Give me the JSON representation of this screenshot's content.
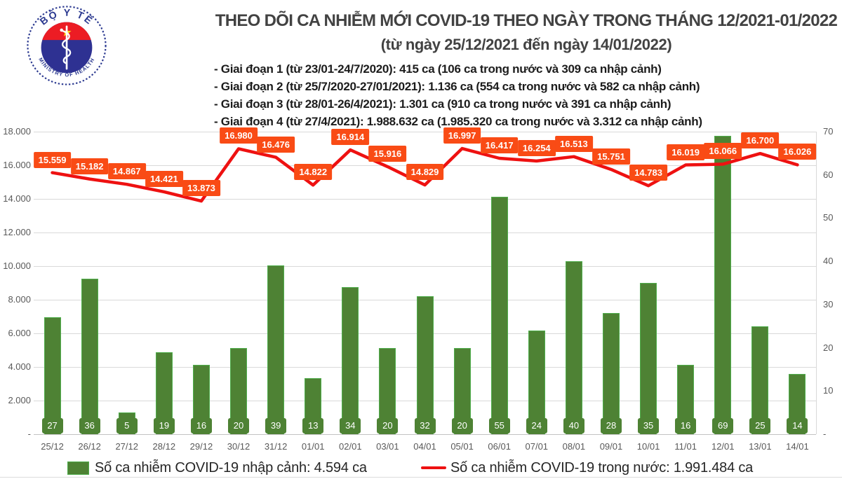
{
  "header": {
    "logo": {
      "top_text": "BỘ Y TẾ",
      "bottom_text": "MINISTRY OF HEALTH"
    },
    "title": "THEO DÕI CA NHIỄM MỚI COVID-19 THEO NGÀY TRONG THÁNG 12/2021-01/2022",
    "subtitle": "(từ ngày 25/12/2021 đến ngày 14/01/2022)",
    "phase_notes": [
      "- Giai đoạn 1 (từ 23/01-24/7/2020): 415 ca (106 ca trong nước và 309 ca nhập cảnh)",
      "- Giai đoạn 2 (từ 25/7/2020-27/01/2021): 1.136 ca (554 ca trong nước và 582 ca nhập cảnh)",
      "- Giai đoạn 3 (từ 28/01-26/4/2021): 1.301 ca (910 ca trong nước và 391 ca nhập cảnh)",
      "- Giai đoạn 4 (từ 27/4/2021): 1.988.632 ca (1.985.320 ca trong nước và 3.312 ca nhập cảnh)"
    ]
  },
  "chart_data": {
    "type": "bar+line",
    "categories": [
      "25/12",
      "26/12",
      "27/12",
      "28/12",
      "29/12",
      "30/12",
      "31/12",
      "01/01",
      "02/01",
      "03/01",
      "04/01",
      "05/01",
      "06/01",
      "07/01",
      "08/01",
      "09/01",
      "10/01",
      "11/01",
      "12/01",
      "13/01",
      "14/01"
    ],
    "series": [
      {
        "name": "Số ca nhiễm COVID-19 nhập cảnh",
        "type": "bar",
        "axis": "right",
        "color": "#4e8234",
        "border_color": "#4fae4c",
        "values": [
          27,
          36,
          5,
          19,
          16,
          20,
          39,
          13,
          34,
          20,
          32,
          20,
          55,
          24,
          40,
          28,
          35,
          16,
          69,
          25,
          14
        ]
      },
      {
        "name": "Số ca nhiễm COVID-19 trong nước",
        "type": "line",
        "axis": "left",
        "color": "#ee1111",
        "label_bg": "#f94b15",
        "values": [
          15559,
          15182,
          14867,
          14421,
          13873,
          16980,
          16476,
          14822,
          16914,
          15916,
          14829,
          16997,
          16417,
          16254,
          16513,
          15751,
          14783,
          16019,
          16066,
          16700,
          16026
        ]
      }
    ],
    "line_value_labels": [
      "15.559",
      "15.182",
      "14.867",
      "14.421",
      "13.873",
      "16.980",
      "16.476",
      "14.822",
      "16.914",
      "15.916",
      "14.829",
      "16.997",
      "16.417",
      "16.254",
      "16.513",
      "15.751",
      "14.783",
      "16.019",
      "16.066",
      "16.700",
      "16.026"
    ],
    "left_axis": {
      "min": 0,
      "max": 18000,
      "step": 2000,
      "tick_labels": [
        "18.000",
        "16.000",
        "14.000",
        "12.000",
        "10.000",
        "8.000",
        "6.000",
        "4.000",
        "2.000",
        "-"
      ]
    },
    "right_axis": {
      "min": 0,
      "max": 70,
      "step": 10,
      "tick_labels": [
        "70",
        "60",
        "50",
        "40",
        "30",
        "20",
        "10",
        "-"
      ]
    },
    "grid": true,
    "legend_position": "bottom",
    "legend": [
      {
        "swatch": "bar",
        "label": "Số ca nhiễm COVID-19 nhập cảnh: 4.594 ca"
      },
      {
        "swatch": "line",
        "label": "Số ca nhiễm COVID-19 trong nước: 1.991.484 ca"
      }
    ]
  }
}
